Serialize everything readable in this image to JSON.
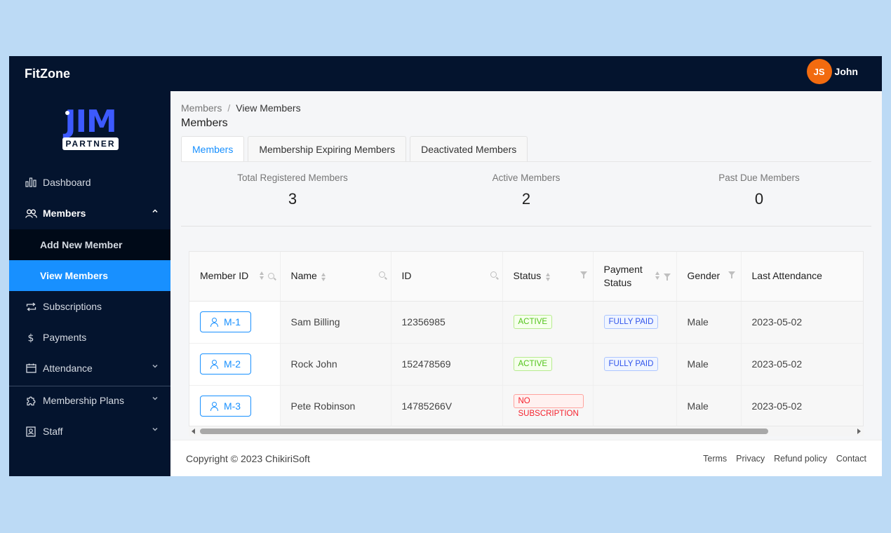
{
  "header": {
    "brand": "FitZone",
    "user_initials": "JS",
    "user_name": "John"
  },
  "sidebar": {
    "logo_main": "JIM",
    "logo_sub": "PARTNER",
    "items": [
      {
        "label": "Dashboard",
        "icon": "bar-chart-icon"
      },
      {
        "label": "Members",
        "icon": "users-icon"
      },
      {
        "label": "Subscriptions",
        "icon": "repeat-icon"
      },
      {
        "label": "Payments",
        "icon": "dollar-icon"
      },
      {
        "label": "Attendance",
        "icon": "calendar-icon"
      },
      {
        "label": "Membership Plans",
        "icon": "puzzle-icon"
      },
      {
        "label": "Staff",
        "icon": "id-card-icon"
      }
    ],
    "submenu": [
      {
        "label": "Add New Member"
      },
      {
        "label": "View Members"
      }
    ]
  },
  "breadcrumb": {
    "parent": "Members",
    "separator": "/",
    "current": "View Members"
  },
  "page_title": "Members",
  "tabs": [
    {
      "label": "Members"
    },
    {
      "label": "Membership Expiring Members"
    },
    {
      "label": "Deactivated Members"
    }
  ],
  "stats": [
    {
      "label": "Total Registered Members",
      "value": "3"
    },
    {
      "label": "Active Members",
      "value": "2"
    },
    {
      "label": "Past Due Members",
      "value": "0"
    }
  ],
  "table": {
    "columns": [
      "Member ID",
      "Name",
      "ID",
      "Status",
      "Payment Status",
      "Gender",
      "Last Attendance"
    ],
    "rows": [
      {
        "member_id": "M-1",
        "name": "Sam Billing",
        "id": "12356985",
        "status": "ACTIVE",
        "payment": "FULLY PAID",
        "gender": "Male",
        "last": "2023-05-02"
      },
      {
        "member_id": "M-2",
        "name": "Rock John",
        "id": "152478569",
        "status": "ACTIVE",
        "payment": "FULLY PAID",
        "gender": "Male",
        "last": "2023-05-02"
      },
      {
        "member_id": "M-3",
        "name": "Pete Robinson",
        "id": "14785266V",
        "status": "NO SUBSCRIPTION",
        "payment": "",
        "gender": "Male",
        "last": "2023-05-02"
      }
    ]
  },
  "footer": {
    "copyright": "Copyright © 2023 ChikiriSoft",
    "links": [
      "Terms",
      "Privacy",
      "Refund policy",
      "Contact"
    ]
  },
  "colors": {
    "primary": "#1890ff",
    "sidebar_bg": "#04142e",
    "avatar_bg": "#f26b0f",
    "page_bg": "#bcdaf5"
  }
}
